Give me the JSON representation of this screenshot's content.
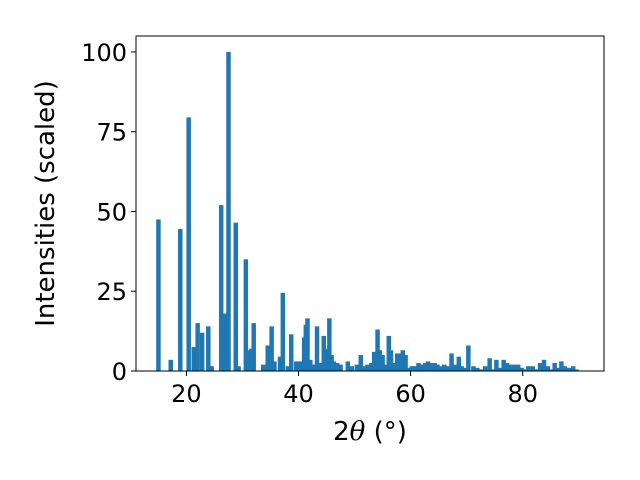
{
  "chart_data": {
    "type": "bar",
    "xlabel_prefix": "2",
    "xlabel_symbol": "θ",
    "xlabel_suffix": " (°)",
    "ylabel": "Intensities (scaled)",
    "xlim": [
      11,
      94.5
    ],
    "ylim": [
      0,
      105
    ],
    "xticks": [
      20,
      40,
      60,
      80
    ],
    "yticks": [
      0,
      25,
      50,
      75,
      100
    ],
    "bar_width_deg": 0.8,
    "bar_color": "#1f77b4",
    "grid": false,
    "x": [
      15.0,
      17.2,
      18.9,
      20.4,
      21.3,
      22.0,
      22.8,
      23.9,
      24.5,
      26.2,
      26.8,
      27.5,
      28.8,
      29.3,
      30.6,
      30.9,
      31.6,
      32.0,
      33.7,
      34.5,
      35.2,
      35.7,
      36.7,
      37.2,
      38.1,
      38.7,
      39.6,
      40.1,
      40.6,
      41.0,
      41.3,
      41.6,
      42.1,
      42.7,
      43.3,
      43.9,
      44.5,
      44.9,
      45.5,
      45.9,
      46.3,
      46.9,
      47.5,
      48.8,
      49.5,
      50.4,
      51.1,
      51.6,
      52.3,
      53.0,
      53.5,
      54.1,
      54.5,
      55.0,
      55.5,
      56.1,
      56.5,
      57.1,
      57.6,
      58.0,
      58.6,
      59.1,
      59.7,
      60.2,
      60.8,
      61.4,
      62.0,
      62.6,
      63.1,
      63.7,
      64.3,
      64.8,
      65.4,
      66.0,
      66.6,
      67.3,
      67.9,
      68.6,
      69.1,
      69.7,
      70.3,
      71.2,
      71.9,
      72.6,
      73.3,
      74.1,
      74.7,
      75.3,
      76.0,
      76.6,
      77.2,
      77.8,
      78.5,
      79.2,
      79.8,
      80.4,
      81.0,
      81.8,
      82.4,
      83.1,
      83.8,
      84.5,
      85.1,
      85.7,
      86.3,
      86.9,
      87.5,
      88.3,
      89.0,
      89.6
    ],
    "values": [
      47.5,
      3.5,
      44.5,
      79.5,
      7.5,
      15.0,
      12.0,
      14.0,
      1.5,
      52.0,
      18.0,
      100.0,
      46.5,
      1.5,
      35.0,
      6.5,
      7.0,
      15.0,
      2.0,
      8.0,
      14.0,
      3.0,
      4.5,
      24.5,
      1.5,
      11.5,
      3.0,
      3.0,
      3.0,
      10.5,
      14.5,
      16.5,
      3.5,
      2.0,
      14.0,
      2.5,
      11.0,
      7.0,
      16.5,
      5.0,
      3.0,
      2.5,
      2.0,
      3.0,
      1.5,
      2.0,
      5.0,
      1.5,
      2.0,
      2.5,
      6.0,
      13.0,
      6.5,
      5.0,
      2.0,
      11.0,
      6.5,
      2.5,
      5.5,
      5.5,
      6.5,
      5.0,
      1.0,
      1.5,
      1.5,
      2.5,
      2.0,
      2.5,
      3.0,
      2.5,
      2.5,
      2.0,
      1.5,
      2.0,
      1.5,
      5.5,
      2.0,
      4.5,
      1.5,
      1.0,
      8.0,
      1.5,
      1.0,
      0.5,
      1.5,
      4.0,
      0.5,
      3.5,
      1.0,
      3.5,
      2.5,
      2.0,
      2.0,
      2.0,
      1.0,
      0.5,
      1.5,
      1.5,
      0.5,
      2.5,
      3.5,
      1.5,
      0.5,
      2.5,
      1.0,
      3.0,
      1.5,
      1.0,
      1.5,
      0.5
    ]
  }
}
